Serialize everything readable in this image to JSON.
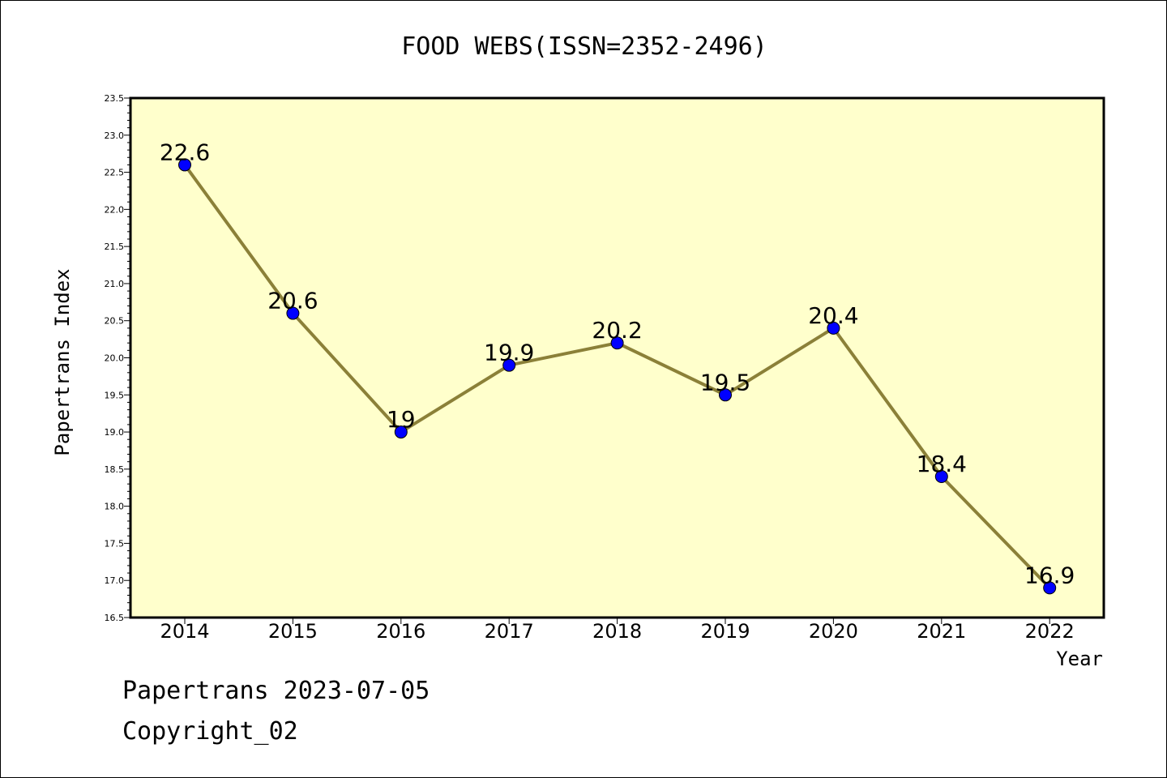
{
  "chart_data": {
    "type": "line",
    "title": "FOOD WEBS(ISSN=2352-2496)",
    "xlabel": "Year",
    "ylabel": "Papertrans Index",
    "categories": [
      "2014",
      "2015",
      "2016",
      "2017",
      "2018",
      "2019",
      "2020",
      "2021",
      "2022"
    ],
    "values": [
      22.6,
      20.6,
      19,
      19.9,
      20.2,
      19.5,
      20.4,
      18.4,
      16.9
    ],
    "data_labels": [
      "22.6",
      "20.6",
      "19",
      "19.9",
      "20.2",
      "19.5",
      "20.4",
      "18.4",
      "16.9"
    ],
    "ylim": [
      16.5,
      23.5
    ],
    "y_ticks": [
      "16.5",
      "17.0",
      "17.5",
      "18.0",
      "18.5",
      "19.0",
      "19.5",
      "20.0",
      "20.5",
      "21.0",
      "21.5",
      "22.0",
      "22.5",
      "23.0",
      "23.5"
    ],
    "grid": false,
    "colors": {
      "plot_background": "#ffffcc",
      "line": "#8b8038",
      "marker": "#0000ff"
    }
  },
  "footer": {
    "line1": "Papertrans 2023-07-05",
    "line2": "Copyright_02"
  }
}
